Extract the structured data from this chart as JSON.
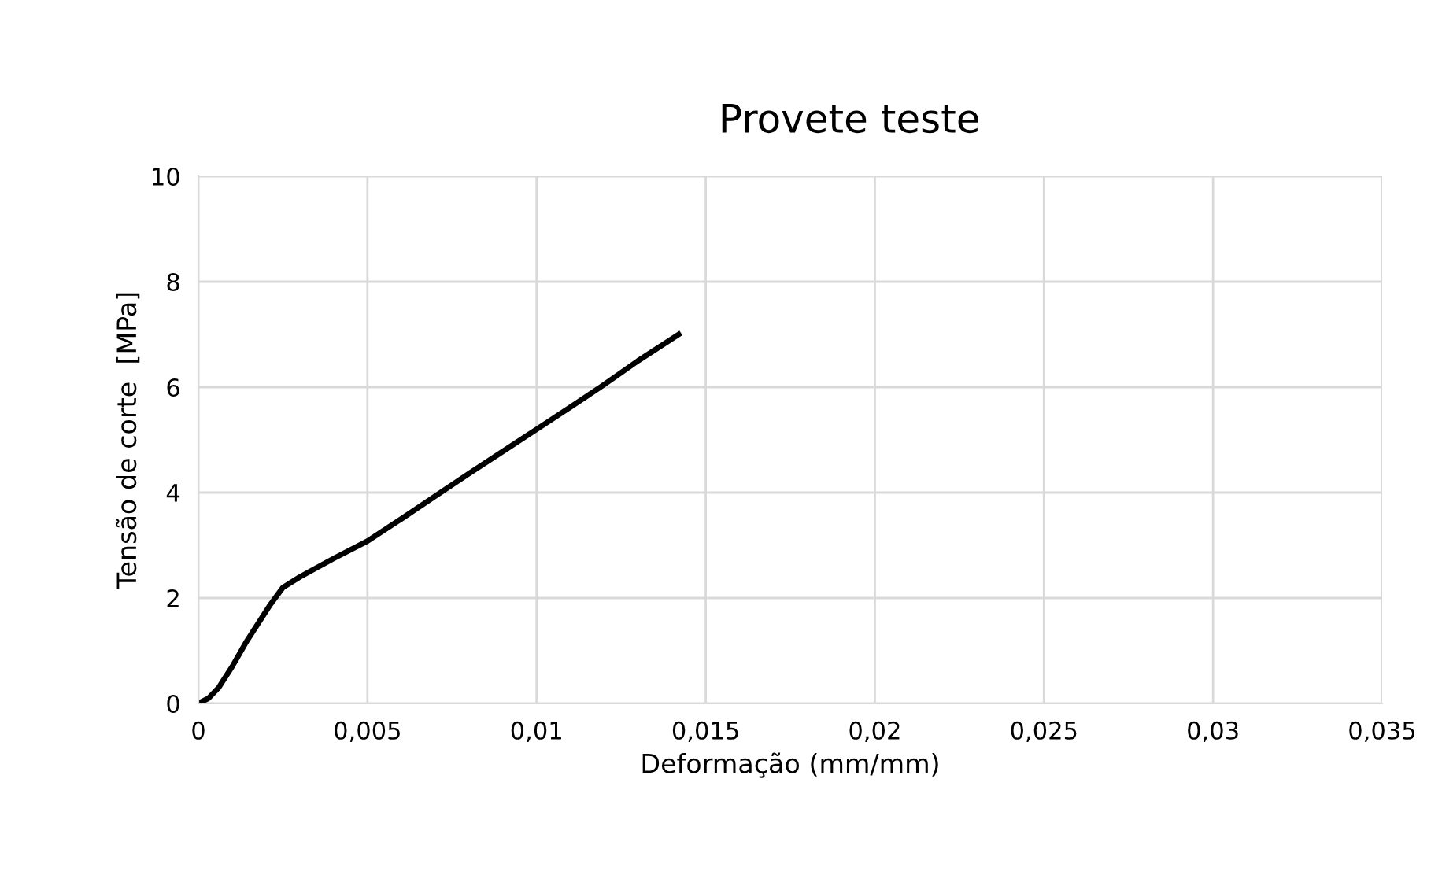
{
  "chart_data": {
    "type": "line",
    "title": "Provete teste",
    "xlabel": "Deformação (mm/mm)",
    "ylabel": "Tensão de corte  [MPa]",
    "series": [
      {
        "color": "#000000",
        "x": [
          0,
          0.0003,
          0.0006,
          0.001,
          0.0014,
          0.0018,
          0.0021,
          0.0025,
          0.003,
          0.004,
          0.005,
          0.006,
          0.007,
          0.008,
          0.009,
          0.01,
          0.011,
          0.012,
          0.013,
          0.0142
        ],
        "values": [
          0,
          0.1,
          0.3,
          0.7,
          1.15,
          1.55,
          1.85,
          2.2,
          2.4,
          2.75,
          3.08,
          3.5,
          3.93,
          4.36,
          4.78,
          5.2,
          5.62,
          6.05,
          6.5,
          7.0
        ]
      }
    ],
    "xlim": [
      0,
      0.035
    ],
    "xticks": [
      0,
      {
        "value": 0.005,
        "label": "0,005"
      },
      {
        "value": 0.01,
        "label": "0,01"
      },
      {
        "value": 0.015,
        "label": "0,015"
      },
      {
        "value": 0.02,
        "label": "0,02"
      },
      {
        "value": 0.025,
        "label": "0,025"
      },
      {
        "value": 0.03,
        "label": "0,03"
      },
      {
        "value": 0.035,
        "label": "0,035"
      }
    ],
    "ylim": [
      0,
      10
    ],
    "yticks": [
      0,
      2,
      4,
      6,
      8,
      10
    ],
    "grid": true,
    "marker": "none",
    "line_style": "solid",
    "legend": false
  }
}
